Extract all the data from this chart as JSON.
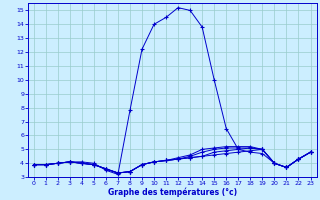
{
  "xlabel": "Graphe des températures (°c)",
  "bg_color": "#cceeff",
  "grid_color": "#99cccc",
  "line_color": "#0000cc",
  "hours": [
    0,
    1,
    2,
    3,
    4,
    5,
    6,
    7,
    8,
    9,
    10,
    11,
    12,
    13,
    14,
    15,
    16,
    17,
    18,
    19,
    20,
    21,
    22,
    23
  ],
  "main_temps": [
    3.9,
    3.9,
    4.0,
    4.1,
    4.1,
    4.0,
    3.5,
    3.2,
    7.8,
    12.2,
    14.0,
    14.5,
    15.2,
    15.0,
    13.8,
    10.0,
    6.5,
    5.0,
    4.8,
    4.7,
    4.0,
    3.7,
    4.3,
    4.8
  ],
  "line2_temps": [
    3.9,
    3.9,
    4.0,
    4.1,
    4.0,
    3.9,
    3.6,
    3.3,
    3.4,
    3.9,
    4.1,
    4.2,
    4.3,
    4.4,
    4.5,
    4.6,
    4.7,
    4.8,
    4.9,
    5.0,
    4.0,
    3.7,
    4.3,
    4.8
  ],
  "line3_temps": [
    3.9,
    3.9,
    4.0,
    4.1,
    4.0,
    3.9,
    3.6,
    3.3,
    3.4,
    3.9,
    4.1,
    4.2,
    4.3,
    4.4,
    4.5,
    4.8,
    4.9,
    5.0,
    5.1,
    5.0,
    4.0,
    3.7,
    4.3,
    4.8
  ],
  "line4_temps": [
    3.9,
    3.9,
    4.0,
    4.1,
    4.0,
    3.9,
    3.6,
    3.3,
    3.4,
    3.9,
    4.1,
    4.2,
    4.3,
    4.5,
    4.8,
    5.0,
    5.1,
    5.1,
    5.1,
    5.0,
    4.0,
    3.7,
    4.3,
    4.8
  ],
  "line5_temps": [
    3.9,
    3.9,
    4.0,
    4.1,
    4.0,
    3.9,
    3.6,
    3.3,
    3.4,
    3.9,
    4.1,
    4.2,
    4.4,
    4.6,
    5.0,
    5.1,
    5.2,
    5.2,
    5.2,
    5.0,
    4.0,
    3.7,
    4.3,
    4.8
  ],
  "ylim": [
    3.0,
    15.5
  ],
  "yticks": [
    3,
    4,
    5,
    6,
    7,
    8,
    9,
    10,
    11,
    12,
    13,
    14,
    15
  ],
  "xlim": [
    -0.5,
    23.5
  ],
  "xticks": [
    0,
    1,
    2,
    3,
    4,
    5,
    6,
    7,
    8,
    9,
    10,
    11,
    12,
    13,
    14,
    15,
    16,
    17,
    18,
    19,
    20,
    21,
    22,
    23
  ]
}
